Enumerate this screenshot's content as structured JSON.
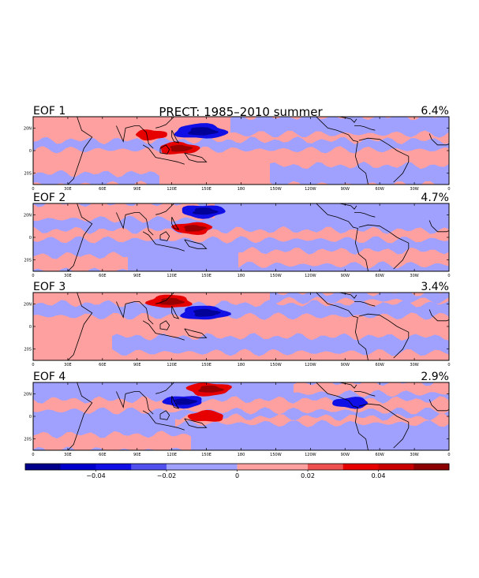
{
  "chart_data": {
    "type": "heatmap",
    "title": "PRECT: 1985–2010 summer",
    "x_ticks": [
      "0",
      "30E",
      "60E",
      "90E",
      "120E",
      "150E",
      "180",
      "150W",
      "120W",
      "90W",
      "60W",
      "30W",
      "0"
    ],
    "y_ticks": [
      "20N",
      "0",
      "20S"
    ],
    "xlim": [
      0,
      360
    ],
    "ylim": [
      -30,
      30
    ],
    "colorbar": {
      "levels": [
        -0.06,
        -0.05,
        -0.04,
        -0.03,
        -0.02,
        -0.01,
        0,
        0.01,
        0.02,
        0.03,
        0.04,
        0.05,
        0.06
      ],
      "colors": [
        "#00008b",
        "#0000cd",
        "#0f0fe6",
        "#5050ee",
        "#a0a0ff",
        "#a0a0ff",
        "#ffa0a0",
        "#ffa0a0",
        "#ee5050",
        "#e60000",
        "#c80000",
        "#8b0000"
      ],
      "tick_labels": [
        "−0.04",
        "−0.02",
        "0",
        "0.02",
        "0.04"
      ],
      "tick_values": [
        -0.04,
        -0.02,
        0,
        0.02,
        0.04
      ]
    },
    "panels": [
      {
        "label": "EOF 1",
        "variance": "6.4%",
        "features": [
          {
            "lon": 145,
            "lat": 17,
            "value": -0.045
          },
          {
            "lon": 126,
            "lat": 2,
            "value": 0.03
          },
          {
            "lon": 102,
            "lat": 14,
            "value": 0.02
          }
        ]
      },
      {
        "label": "EOF 2",
        "variance": "4.7%",
        "features": [
          {
            "lon": 147,
            "lat": 23,
            "value": -0.035
          },
          {
            "lon": 138,
            "lat": 8,
            "value": 0.03
          }
        ]
      },
      {
        "label": "EOF 3",
        "variance": "3.4%",
        "features": [
          {
            "lon": 118,
            "lat": 22,
            "value": 0.035
          },
          {
            "lon": 148,
            "lat": 12,
            "value": -0.04
          }
        ]
      },
      {
        "label": "EOF 4",
        "variance": "2.9%",
        "features": [
          {
            "lon": 152,
            "lat": 24,
            "value": 0.035
          },
          {
            "lon": 130,
            "lat": 13,
            "value": -0.03
          },
          {
            "lon": 275,
            "lat": 12,
            "value": -0.025
          },
          {
            "lon": 150,
            "lat": 0,
            "value": 0.025
          }
        ]
      }
    ]
  }
}
